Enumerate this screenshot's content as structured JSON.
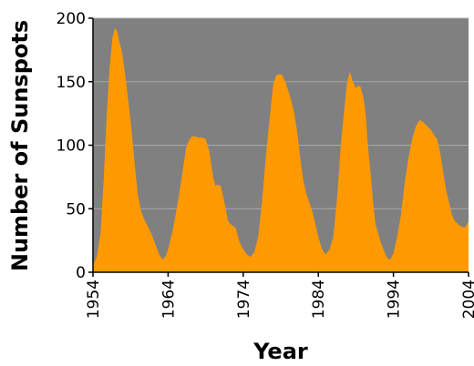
{
  "chart_data": {
    "type": "area",
    "title": "",
    "xlabel": "Year",
    "ylabel": "Number of Sunspots",
    "xlim": [
      1954,
      2004
    ],
    "ylim": [
      0,
      200
    ],
    "x_ticks": [
      "1954",
      "1964",
      "1974",
      "1984",
      "1994",
      "2004"
    ],
    "y_ticks": [
      "0",
      "50",
      "100",
      "150",
      "200"
    ],
    "grid": true,
    "colors": {
      "plot_background": "#808080",
      "area_fill": "#FF9900",
      "grid_line": "#a8a8a8",
      "axis_line": "#000000"
    },
    "series": [
      {
        "x": [
          1954.0,
          1954.5,
          1955.0,
          1955.4,
          1955.8,
          1956.2,
          1956.6,
          1956.9,
          1957.2,
          1957.5,
          1957.8,
          1958.0,
          1958.4,
          1958.8,
          1959.2,
          1959.6,
          1960.0,
          1960.4,
          1960.8,
          1961.3,
          1961.8,
          1962.3,
          1962.8,
          1963.3,
          1963.7,
          1964.0,
          1964.5,
          1965.0,
          1965.5,
          1966.0,
          1966.4,
          1966.8,
          1967.2,
          1967.6,
          1968.0,
          1968.5,
          1969.0,
          1969.5,
          1970.0,
          1970.3,
          1970.6,
          1971.0,
          1971.5,
          1972.0,
          1972.5,
          1973.0,
          1973.5,
          1974.0,
          1974.5,
          1975.0,
          1975.5,
          1976.0,
          1976.5,
          1977.0,
          1977.5,
          1978.0,
          1978.4,
          1978.8,
          1979.2,
          1979.6,
          1980.0,
          1980.4,
          1980.8,
          1981.2,
          1981.6,
          1982.0,
          1982.4,
          1982.8,
          1983.2,
          1983.6,
          1984.0,
          1984.5,
          1985.0,
          1985.5,
          1986.0,
          1986.5,
          1987.0,
          1987.4,
          1987.8,
          1988.2,
          1988.6,
          1989.0,
          1989.3,
          1989.6,
          1990.0,
          1990.3,
          1990.6,
          1991.0,
          1991.3,
          1991.6,
          1992.0,
          1992.4,
          1992.8,
          1993.2,
          1993.6,
          1994.0,
          1994.5,
          1995.0,
          1995.5,
          1996.0,
          1996.5,
          1997.0,
          1997.5,
          1998.0,
          1998.5,
          1999.0,
          1999.4,
          1999.8,
          2000.2,
          2000.6,
          2001.0,
          2001.4,
          2001.8,
          2002.2,
          2002.6,
          2003.0,
          2003.5,
          2004.0
        ],
        "values": [
          5,
          12,
          30,
          70,
          120,
          160,
          185,
          192,
          190,
          182,
          175,
          168,
          150,
          130,
          108,
          82,
          60,
          48,
          42,
          36,
          30,
          22,
          14,
          10,
          13,
          18,
          30,
          45,
          62,
          82,
          98,
          104,
          107,
          107,
          106,
          106,
          105,
          95,
          75,
          68,
          69,
          68,
          55,
          40,
          37,
          35,
          24,
          18,
          14,
          12,
          16,
          28,
          55,
          90,
          120,
          148,
          155,
          156,
          155,
          150,
          143,
          135,
          125,
          110,
          90,
          72,
          62,
          55,
          48,
          38,
          28,
          18,
          14,
          18,
          28,
          58,
          100,
          125,
          148,
          158,
          150,
          145,
          147,
          146,
          138,
          125,
          100,
          75,
          55,
          38,
          30,
          22,
          16,
          11,
          10,
          15,
          28,
          45,
          70,
          90,
          105,
          115,
          120,
          118,
          115,
          112,
          108,
          105,
          95,
          80,
          65,
          55,
          45,
          40,
          38,
          36,
          35,
          40
        ]
      }
    ]
  }
}
